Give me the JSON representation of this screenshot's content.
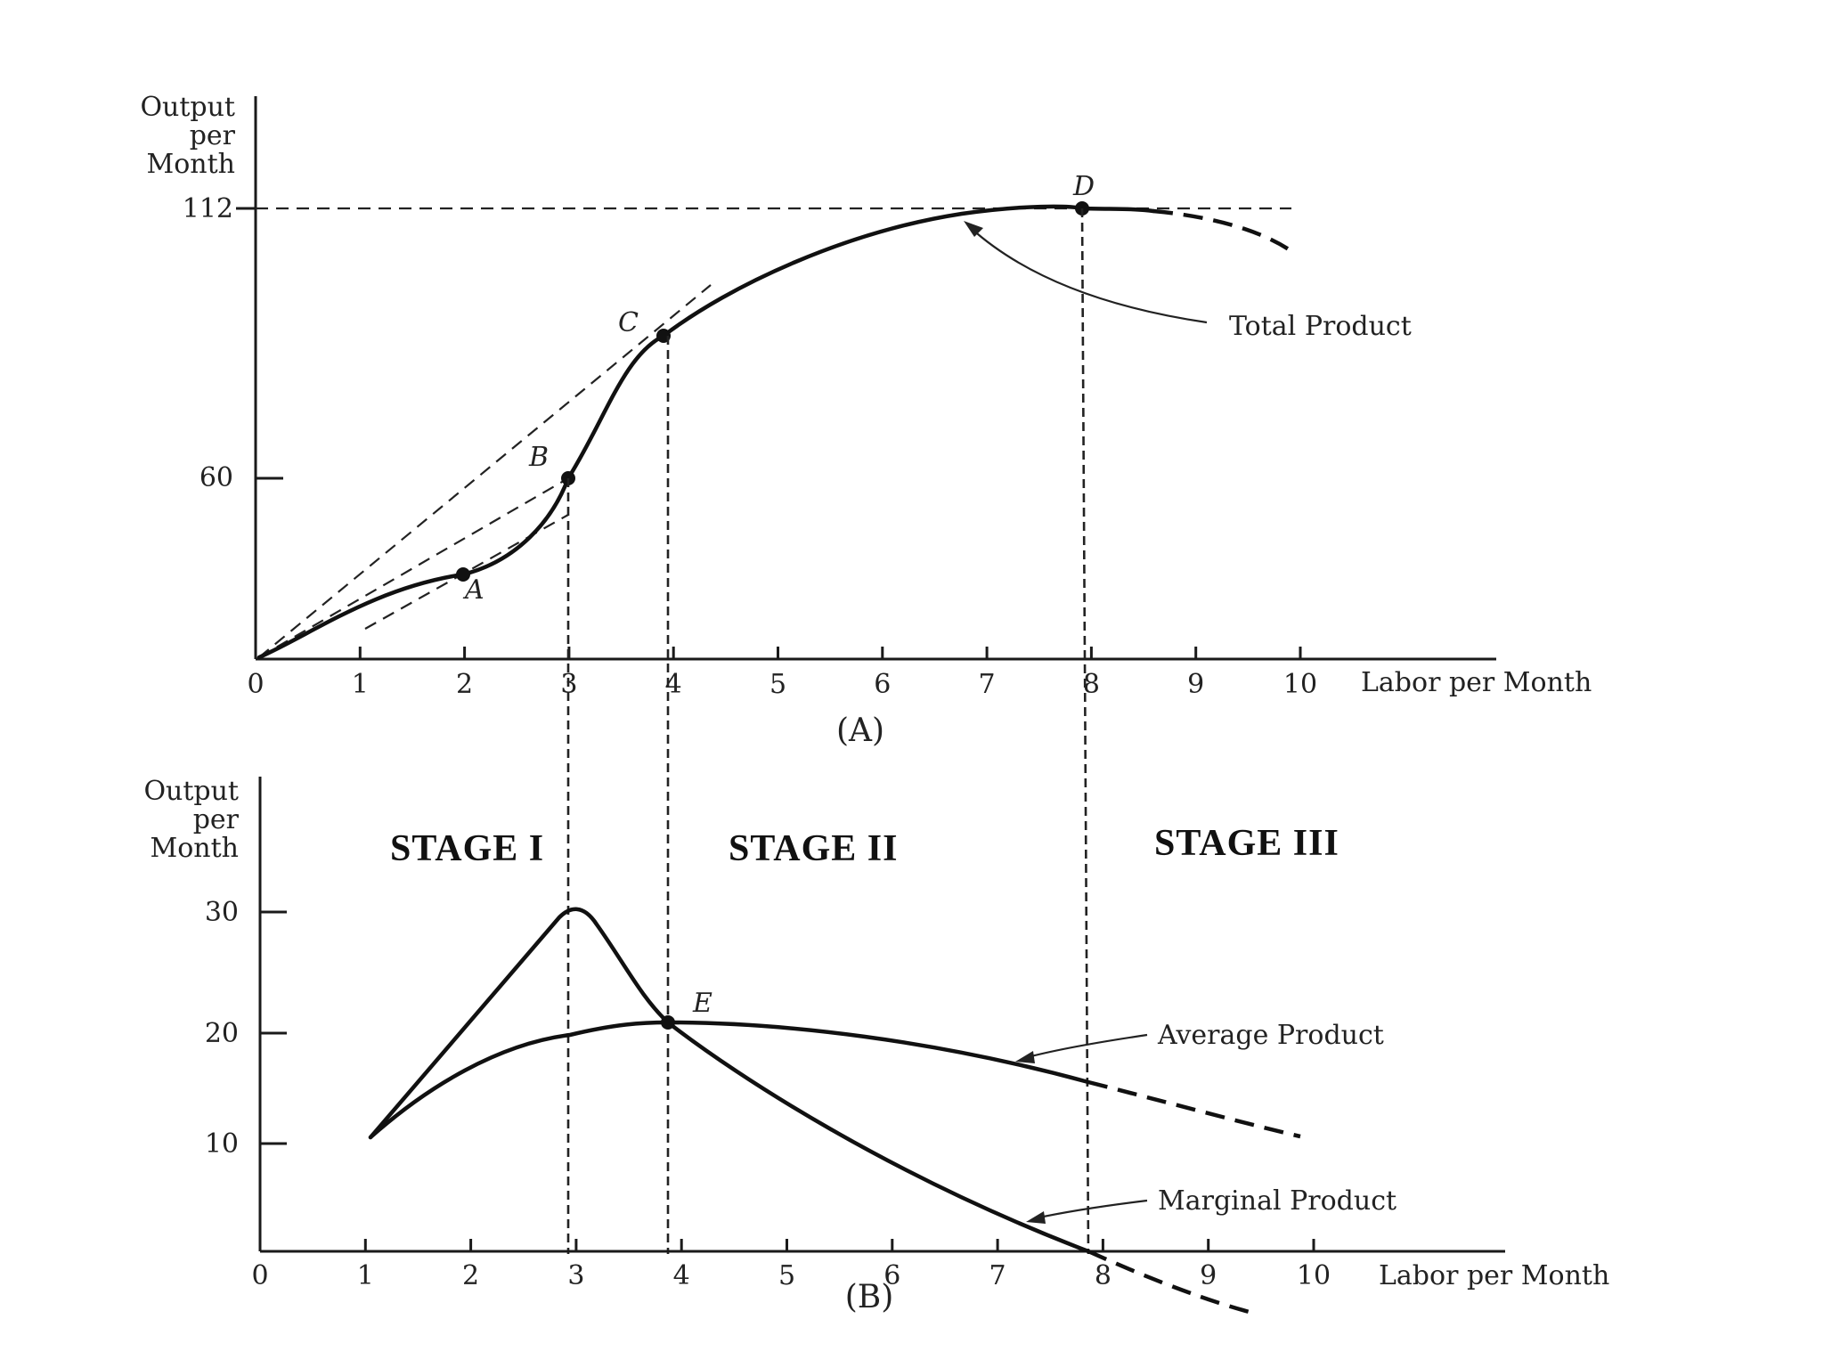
{
  "chart_data": [
    {
      "panel": "A",
      "type": "line",
      "caption": "(A)",
      "ylabel": [
        "Output",
        "per",
        "Month"
      ],
      "xlabel": "Labor per Month",
      "x_ticks": [
        "0",
        "1",
        "2",
        "3",
        "4",
        "5",
        "6",
        "7",
        "8",
        "9",
        "10"
      ],
      "y_ticks": [
        "60",
        "112"
      ],
      "xlim": [
        0,
        10
      ],
      "ylim": [
        0,
        112
      ],
      "series": [
        {
          "name": "Total Product",
          "x": [
            0,
            1,
            2,
            3,
            3.5,
            4,
            5,
            6,
            7,
            8,
            9,
            10
          ],
          "y": [
            0,
            12,
            27,
            60,
            78,
            90,
            100,
            106,
            110,
            112,
            111,
            104
          ],
          "dashed_from_x": 9
        }
      ],
      "points": [
        {
          "label": "A",
          "x": 2,
          "y": 27
        },
        {
          "label": "B",
          "x": 3,
          "y": 60
        },
        {
          "label": "C",
          "x": 4,
          "y": 90
        },
        {
          "label": "D",
          "x": 8,
          "y": 112
        }
      ],
      "tangent_lines": [
        {
          "from": [
            0,
            0
          ],
          "to": [
            4.4,
            101
          ]
        },
        {
          "from": [
            0,
            0
          ],
          "to": [
            3,
            60
          ]
        },
        {
          "from": [
            1,
            12
          ],
          "to": [
            3,
            50
          ]
        }
      ],
      "reference_lines": [
        {
          "type": "horizontal",
          "y": 112
        },
        {
          "type": "vertical",
          "x": 3
        },
        {
          "type": "vertical",
          "x": 4
        },
        {
          "type": "vertical",
          "x": 8
        }
      ],
      "annotations": [
        "Total Product"
      ]
    },
    {
      "panel": "B",
      "type": "line",
      "caption": "(B)",
      "ylabel": [
        "Output",
        "per",
        "Month"
      ],
      "xlabel": "Labor per Month",
      "x_ticks": [
        "0",
        "1",
        "2",
        "3",
        "4",
        "5",
        "6",
        "7",
        "8",
        "9",
        "10"
      ],
      "y_ticks": [
        "10",
        "20",
        "30"
      ],
      "xlim": [
        0,
        10
      ],
      "ylim": [
        0,
        35
      ],
      "series": [
        {
          "name": "Average Product",
          "x": [
            1,
            2,
            3,
            4,
            5,
            6,
            7,
            8,
            9,
            10
          ],
          "y": [
            10.5,
            15.5,
            20,
            22,
            21.5,
            20,
            17.5,
            15.5,
            13,
            10.5
          ],
          "dashed_from_x": 8
        },
        {
          "name": "Marginal Product",
          "x": [
            1,
            2,
            3,
            4,
            5,
            6,
            7,
            8,
            9,
            9.7
          ],
          "y": [
            10.5,
            20,
            30.5,
            20.5,
            14.5,
            9,
            4,
            0,
            -4,
            -6
          ],
          "dashed_from_x": 8
        }
      ],
      "points": [
        {
          "label": "E",
          "x": 4,
          "y": 22
        }
      ],
      "stages": [
        "STAGE I",
        "STAGE II",
        "STAGE III"
      ],
      "annotations": [
        "Average Product",
        "Marginal Product"
      ]
    }
  ]
}
